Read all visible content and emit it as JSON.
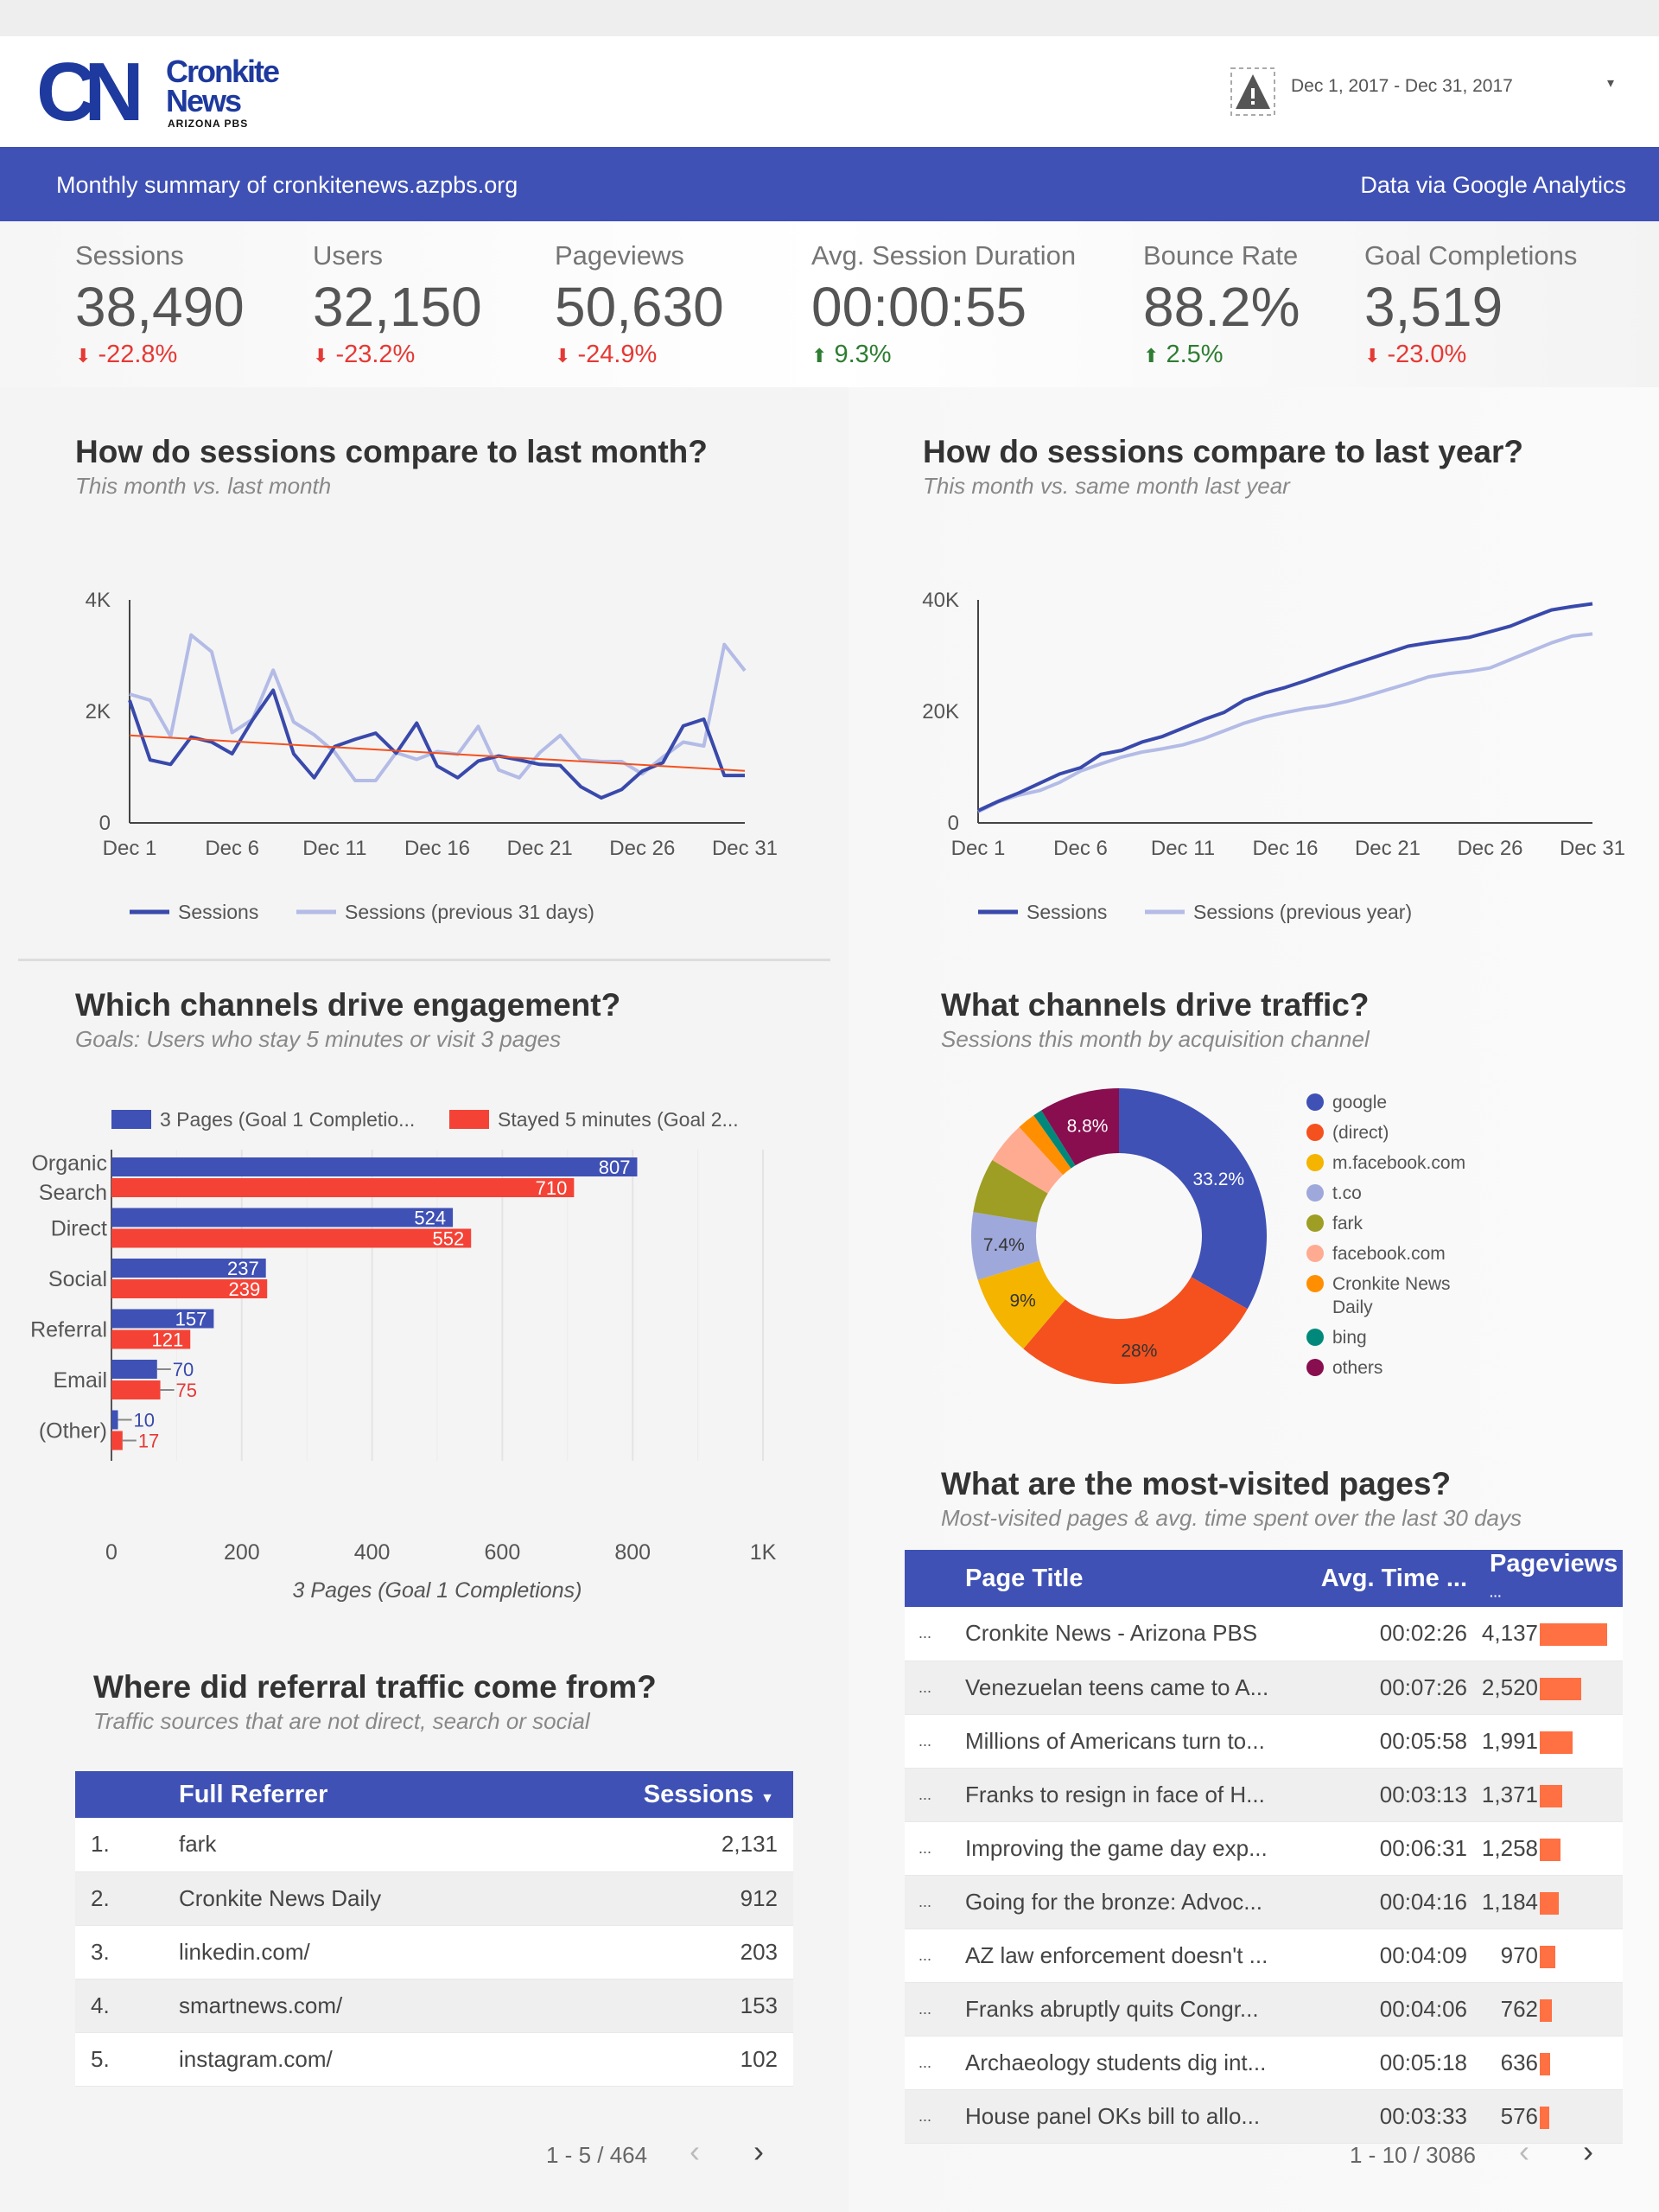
{
  "header": {
    "logo_mark": "CN",
    "logo_line1": "Cronkite",
    "logo_line2": "News",
    "logo_line3": "ARIZONA PBS",
    "date_range": "Dec 1, 2017 - Dec 31, 2017",
    "warning_icon": "warning-icon"
  },
  "banner": {
    "left": "Monthly summary of cronkitenews.azpbs.org",
    "right": "Data via Google Analytics",
    "color": "#3f51b5"
  },
  "kpis": [
    {
      "label": "Sessions",
      "value": "38,490",
      "change": "-22.8%",
      "direction": "down"
    },
    {
      "label": "Users",
      "value": "32,150",
      "change": "-23.2%",
      "direction": "down"
    },
    {
      "label": "Pageviews",
      "value": "50,630",
      "change": "-24.9%",
      "direction": "down"
    },
    {
      "label": "Avg. Session Duration",
      "value": "00:00:55",
      "change": "9.3%",
      "direction": "up"
    },
    {
      "label": "Bounce Rate",
      "value": "88.2%",
      "change": "2.5%",
      "direction": "up"
    },
    {
      "label": "Goal Completions",
      "value": "3,519",
      "change": "-23.0%",
      "direction": "down"
    }
  ],
  "sections": {
    "month": {
      "title": "How do sessions compare to last month?",
      "subtitle": "This month vs. last month"
    },
    "year": {
      "title": "How do sessions compare to last year?",
      "subtitle": "This month vs. same month last year"
    },
    "engagement": {
      "title": "Which channels drive engagement?",
      "subtitle": "Goals: Users who stay 5 minutes or visit 3 pages"
    },
    "traffic": {
      "title": "What channels drive traffic?",
      "subtitle": "Sessions this month by acquisition channel"
    },
    "pages": {
      "title": "What are the most-visited pages?",
      "subtitle": "Most-visited pages & avg. time spent over the last 30 days"
    },
    "referral": {
      "title": "Where did referral traffic come from?",
      "subtitle": "Traffic sources that are not direct, search or social"
    }
  },
  "chart_data": [
    {
      "type": "line",
      "id": "month",
      "x": [
        "Dec 1",
        "Dec 2",
        "Dec 3",
        "Dec 4",
        "Dec 5",
        "Dec 6",
        "Dec 7",
        "Dec 8",
        "Dec 9",
        "Dec 10",
        "Dec 11",
        "Dec 12",
        "Dec 13",
        "Dec 14",
        "Dec 15",
        "Dec 16",
        "Dec 17",
        "Dec 18",
        "Dec 19",
        "Dec 20",
        "Dec 21",
        "Dec 22",
        "Dec 23",
        "Dec 24",
        "Dec 25",
        "Dec 26",
        "Dec 27",
        "Dec 28",
        "Dec 29",
        "Dec 30",
        "Dec 31"
      ],
      "xticks": [
        "Dec 1",
        "Dec 6",
        "Dec 11",
        "Dec 16",
        "Dec 21",
        "Dec 26",
        "Dec 31"
      ],
      "yticks": [
        "0",
        "2K",
        "4K"
      ],
      "ylim": [
        0,
        4000
      ],
      "series": [
        {
          "name": "Sessions",
          "color": "#3949ab",
          "values": [
            2200,
            1130,
            1050,
            1540,
            1450,
            1240,
            1850,
            2380,
            1240,
            810,
            1370,
            1500,
            1610,
            1250,
            1790,
            1020,
            810,
            1110,
            1200,
            1130,
            1050,
            1030,
            650,
            450,
            600,
            930,
            1080,
            1740,
            1860,
            850,
            850
          ]
        },
        {
          "name": "Sessions (previous 31 days)",
          "color": "#b3bbe6",
          "values": [
            2310,
            2200,
            1550,
            3370,
            3070,
            1620,
            1860,
            2740,
            1810,
            1580,
            1270,
            760,
            760,
            1260,
            1140,
            1280,
            1230,
            1730,
            950,
            810,
            1260,
            1570,
            1130,
            1100,
            1100,
            880,
            1180,
            1450,
            1380,
            3200,
            2730
          ]
        }
      ],
      "trendline": {
        "color": "#f4511e",
        "start": 1570,
        "end": 935
      },
      "legend": "bottom"
    },
    {
      "type": "line",
      "id": "year",
      "x": [
        "Dec 1",
        "Dec 2",
        "Dec 3",
        "Dec 4",
        "Dec 5",
        "Dec 6",
        "Dec 7",
        "Dec 8",
        "Dec 9",
        "Dec 10",
        "Dec 11",
        "Dec 12",
        "Dec 13",
        "Dec 14",
        "Dec 15",
        "Dec 16",
        "Dec 17",
        "Dec 18",
        "Dec 19",
        "Dec 20",
        "Dec 21",
        "Dec 22",
        "Dec 23",
        "Dec 24",
        "Dec 25",
        "Dec 26",
        "Dec 27",
        "Dec 28",
        "Dec 29",
        "Dec 30",
        "Dec 31"
      ],
      "xticks": [
        "Dec 1",
        "Dec 6",
        "Dec 11",
        "Dec 16",
        "Dec 21",
        "Dec 26",
        "Dec 31"
      ],
      "yticks": [
        "0",
        "20K",
        "40K"
      ],
      "ylim": [
        0,
        40000
      ],
      "series": [
        {
          "name": "Sessions",
          "color": "#3949ab",
          "values": [
            2200,
            3900,
            5400,
            7100,
            8800,
            9900,
            12300,
            13000,
            14500,
            15500,
            17000,
            18500,
            19800,
            22000,
            23300,
            24300,
            25500,
            26800,
            28100,
            29300,
            30500,
            31700,
            32300,
            32800,
            33300,
            34300,
            35300,
            36800,
            38200,
            38800,
            39300
          ]
        },
        {
          "name": "Sessions (previous year)",
          "color": "#b3bbe6",
          "values": [
            2000,
            3800,
            5000,
            5800,
            7300,
            9300,
            10600,
            11800,
            12700,
            13300,
            14000,
            15100,
            16500,
            17900,
            19000,
            19800,
            20500,
            21000,
            21800,
            22800,
            23900,
            25000,
            26200,
            26800,
            27200,
            27800,
            29300,
            30800,
            32300,
            33500,
            33900
          ]
        }
      ],
      "legend": "bottom"
    },
    {
      "type": "bar",
      "id": "engagement",
      "orientation": "horizontal",
      "categories": [
        "Organic Search",
        "Direct",
        "Social",
        "Referral",
        "Email",
        "(Other)"
      ],
      "series": [
        {
          "name": "3 Pages (Goal 1 Completio...",
          "color": "#3f51b5",
          "values": [
            807,
            524,
            237,
            157,
            70,
            10
          ]
        },
        {
          "name": "Stayed 5 minutes (Goal 2...",
          "color": "#f44336",
          "values": [
            710,
            552,
            239,
            121,
            75,
            17
          ]
        }
      ],
      "xlim": [
        0,
        1000
      ],
      "xticks": [
        "0",
        "200",
        "400",
        "600",
        "800",
        "1K"
      ],
      "xlabel": "3 Pages (Goal 1 Completions)",
      "legend": "top",
      "grid": true
    },
    {
      "type": "pie",
      "id": "traffic",
      "donut": true,
      "slices": [
        {
          "label": "google",
          "value": 33.2,
          "color": "#3f51b5",
          "shown": "33.2%"
        },
        {
          "label": "(direct)",
          "value": 28,
          "color": "#f4511e",
          "shown": "28%"
        },
        {
          "label": "m.facebook.com",
          "value": 9,
          "color": "#f4b400",
          "shown": "9%"
        },
        {
          "label": "t.co",
          "value": 7.4,
          "color": "#9fa8da",
          "shown": "7.4%"
        },
        {
          "label": "fark",
          "value": 6,
          "color": "#9e9d24",
          "shown": ""
        },
        {
          "label": "facebook.com",
          "value": 4.6,
          "color": "#ffab91",
          "shown": ""
        },
        {
          "label": "Cronkite News Daily",
          "value": 2,
          "color": "#ff8f00",
          "shown": ""
        },
        {
          "label": "bing",
          "value": 1,
          "color": "#00897b",
          "shown": ""
        },
        {
          "label": "others",
          "value": 8.8,
          "color": "#880e4f",
          "shown": "8.8%"
        }
      ],
      "legend": "right"
    }
  ],
  "pages_table": {
    "headers": [
      "Page Title",
      "Avg. Time ...",
      "Pageviews"
    ],
    "bar_color": "#ff7043",
    "rows": [
      {
        "title": "Cronkite News - Arizona PBS",
        "time": "00:02:26",
        "views": "4,137",
        "n": 4137
      },
      {
        "title": "Venezuelan teens came to A...",
        "time": "00:07:26",
        "views": "2,520",
        "n": 2520
      },
      {
        "title": "Millions of Americans turn to...",
        "time": "00:05:58",
        "views": "1,991",
        "n": 1991
      },
      {
        "title": "Franks to resign in face of H...",
        "time": "00:03:13",
        "views": "1,371",
        "n": 1371
      },
      {
        "title": "Improving the game day exp...",
        "time": "00:06:31",
        "views": "1,258",
        "n": 1258
      },
      {
        "title": "Going for the bronze: Advoc...",
        "time": "00:04:16",
        "views": "1,184",
        "n": 1184
      },
      {
        "title": "AZ law enforcement doesn't ...",
        "time": "00:04:09",
        "views": "970",
        "n": 970
      },
      {
        "title": "Franks abruptly quits Congr...",
        "time": "00:04:06",
        "views": "762",
        "n": 762
      },
      {
        "title": "Archaeology students dig int...",
        "time": "00:05:18",
        "views": "636",
        "n": 636
      },
      {
        "title": "House panel OKs bill to allo...",
        "time": "00:03:33",
        "views": "576",
        "n": 576
      }
    ],
    "pagination": "1 - 10 / 3086"
  },
  "referral_table": {
    "headers": [
      "Full Referrer",
      "Sessions"
    ],
    "rows": [
      {
        "rank": "1.",
        "referrer": "fark",
        "sessions": "2,131"
      },
      {
        "rank": "2.",
        "referrer": "Cronkite News Daily",
        "sessions": "912"
      },
      {
        "rank": "3.",
        "referrer": "linkedin.com/",
        "sessions": "203"
      },
      {
        "rank": "4.",
        "referrer": "smartnews.com/",
        "sessions": "153"
      },
      {
        "rank": "5.",
        "referrer": "instagram.com/",
        "sessions": "102"
      }
    ],
    "pagination": "1 - 5 / 464"
  },
  "pager": {
    "prev": "‹",
    "next": "›",
    "sort_icon": "▼",
    "dropdown_icon": "▾",
    "row_menu": "..."
  }
}
